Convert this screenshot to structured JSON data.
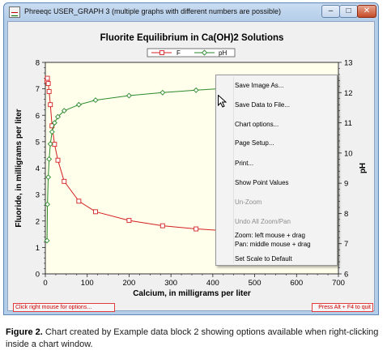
{
  "window": {
    "title": "Phreeqc USER_GRAPH 3 (multiple graphs with different numbers are possible)",
    "minimize_glyph": "–",
    "maximize_glyph": "□",
    "close_glyph": "✕"
  },
  "chart_data": {
    "type": "line",
    "title": "Fluorite Equilibrium in Ca(OH)2 Solutions",
    "xlabel": "Calcium, in milligrams per liter",
    "ylabel": "Fluoride, in milligrams per liter",
    "y2label": "pH",
    "xlim": [
      0,
      700
    ],
    "ylim": [
      0,
      8
    ],
    "y2lim": [
      6,
      13
    ],
    "xticks": [
      "0",
      "100",
      "200",
      "300",
      "400",
      "500",
      "600",
      "700"
    ],
    "yticks": [
      "0",
      "1",
      "2",
      "3",
      "4",
      "5",
      "6",
      "7",
      "8"
    ],
    "y2ticks": [
      "6",
      "7",
      "8",
      "9",
      "10",
      "11",
      "12",
      "13"
    ],
    "legend_position": "top-center",
    "grid": false,
    "series": [
      {
        "name": "F",
        "axis": "left",
        "color": "#d42020",
        "marker": "square",
        "x": [
          4,
          5,
          7,
          9,
          12,
          16,
          22,
          30,
          45,
          80,
          120,
          200,
          280,
          360,
          440
        ],
        "y": [
          7.3,
          7.4,
          7.2,
          6.9,
          6.4,
          5.6,
          4.9,
          4.3,
          3.5,
          2.75,
          2.35,
          2.02,
          1.82,
          1.7,
          1.62
        ]
      },
      {
        "name": "pH",
        "axis": "right",
        "color": "#2a8a2a",
        "marker": "diamond",
        "x": [
          4,
          5,
          7,
          9,
          12,
          16,
          22,
          30,
          45,
          80,
          120,
          200,
          280,
          360,
          440
        ],
        "y": [
          7.1,
          8.3,
          9.2,
          9.8,
          10.3,
          10.7,
          11.0,
          11.2,
          11.4,
          11.6,
          11.75,
          11.9,
          12.0,
          12.08,
          12.15
        ]
      }
    ]
  },
  "status": {
    "left": "Click right mouse for options...",
    "right": "Press Alt + F4 to quit"
  },
  "context_menu": {
    "items": [
      {
        "label": "Save Image As...",
        "enabled": true
      },
      {
        "label": "Save Data to File...",
        "enabled": true
      },
      {
        "label": "Chart options...",
        "enabled": true
      },
      {
        "label": "Page Setup...",
        "enabled": true
      },
      {
        "label": "Print...",
        "enabled": true
      },
      {
        "label": "Show Point Values",
        "enabled": true
      },
      {
        "label": "Un-Zoom",
        "enabled": false
      },
      {
        "label": "Undo All Zoom/Pan",
        "enabled": false
      },
      {
        "label": "Zoom: left mouse + drag",
        "enabled": true
      },
      {
        "label": "Pan: middle mouse + drag",
        "enabled": true
      },
      {
        "label": "Set Scale to Default",
        "enabled": true
      }
    ]
  },
  "caption": {
    "label": "Figure 2.",
    "text": " Chart created by Example data block 2 showing options available when right-clicking inside a chart window."
  }
}
